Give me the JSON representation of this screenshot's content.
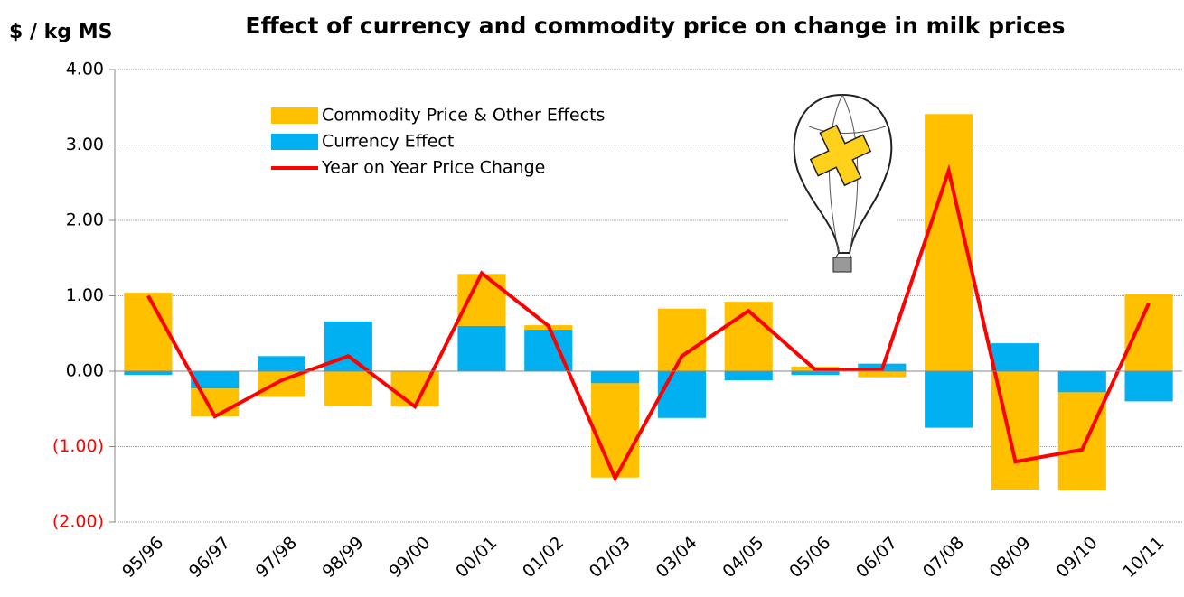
{
  "chart_data": {
    "type": "stacked_bar_line",
    "title": "Effect of currency and commodity price on change in milk prices",
    "y_label": "$ / kg MS",
    "categories": [
      "95/96",
      "96/97",
      "97/98",
      "98/99",
      "99/00",
      "00/01",
      "01/02",
      "02/03",
      "03/04",
      "04/05",
      "05/06",
      "06/07",
      "07/08",
      "08/09",
      "09/10",
      "10/11"
    ],
    "series": [
      {
        "name": "Currency Effect",
        "color": "#00b0f0",
        "kind": "bar",
        "values": [
          -0.05,
          -0.23,
          0.2,
          0.66,
          0,
          0.6,
          0.55,
          -0.16,
          -0.62,
          -0.12,
          -0.05,
          0.1,
          -0.75,
          0.37,
          -0.28,
          -0.4
        ]
      },
      {
        "name": "Commodity Price & Other Effects",
        "color": "#ffc000",
        "kind": "bar",
        "values": [
          1.04,
          -0.37,
          -0.34,
          -0.46,
          -0.47,
          0.69,
          0.06,
          -1.25,
          0.83,
          0.92,
          0.06,
          -0.08,
          3.41,
          -1.57,
          -1.3,
          1.02
        ]
      },
      {
        "name": "Year on Year Price Change",
        "color": "#ff0000",
        "kind": "line",
        "values": [
          1.0,
          -0.6,
          -0.12,
          0.2,
          -0.47,
          1.3,
          0.6,
          -1.42,
          0.2,
          0.8,
          0.02,
          0.02,
          2.66,
          -1.2,
          -1.04,
          0.9
        ]
      }
    ],
    "legend_order": [
      1,
      0,
      2
    ],
    "ylim": [
      -2,
      4
    ],
    "yticks": [
      {
        "value": -2,
        "label": "(2.00)"
      },
      {
        "value": -1,
        "label": "(1.00)"
      },
      {
        "value": 0,
        "label": "0.00"
      },
      {
        "value": 1,
        "label": "1.00"
      },
      {
        "value": 2,
        "label": "2.00"
      },
      {
        "value": 3,
        "label": "3.00"
      },
      {
        "value": 4,
        "label": "4.00"
      }
    ],
    "negative_tick_color": "#ff0000",
    "grid": true
  }
}
